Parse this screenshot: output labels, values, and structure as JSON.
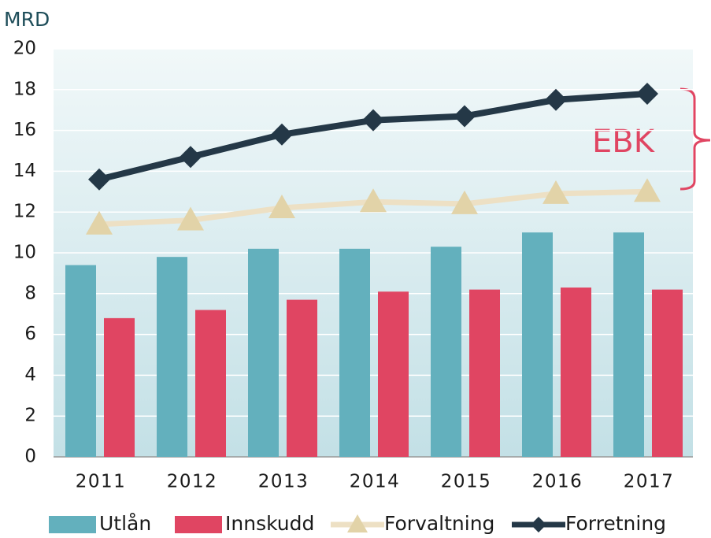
{
  "chart_data": {
    "type": "bar-line",
    "y_label": "MRD",
    "categories": [
      "2011",
      "2012",
      "2013",
      "2014",
      "2015",
      "2016",
      "2017"
    ],
    "series": [
      {
        "name": "Utlån",
        "type": "bar",
        "color": "#63b0bd",
        "values": [
          9.4,
          9.8,
          10.2,
          10.2,
          10.3,
          11.0,
          11.0
        ]
      },
      {
        "name": "Innskudd",
        "type": "bar",
        "color": "#e04562",
        "values": [
          6.8,
          7.2,
          7.7,
          8.1,
          8.2,
          8.3,
          8.2
        ]
      },
      {
        "name": "Forvaltning",
        "type": "line",
        "color": "#ede0c4",
        "marker_color": "#e2d3a8",
        "marker": "triangle",
        "values": [
          11.4,
          11.6,
          12.2,
          12.5,
          12.4,
          12.9,
          13.0
        ]
      },
      {
        "name": "Forretning",
        "type": "line",
        "color": "#243847",
        "marker_color": "#243847",
        "marker": "diamond",
        "values": [
          13.6,
          14.7,
          15.8,
          16.5,
          16.7,
          17.5,
          17.8
        ]
      }
    ],
    "annotation": "EBK",
    "ylim": [
      0,
      20
    ],
    "yticks": [
      0,
      2,
      4,
      6,
      8,
      10,
      12,
      14,
      16,
      18,
      20
    ],
    "grid": true,
    "legend": "bottom"
  }
}
